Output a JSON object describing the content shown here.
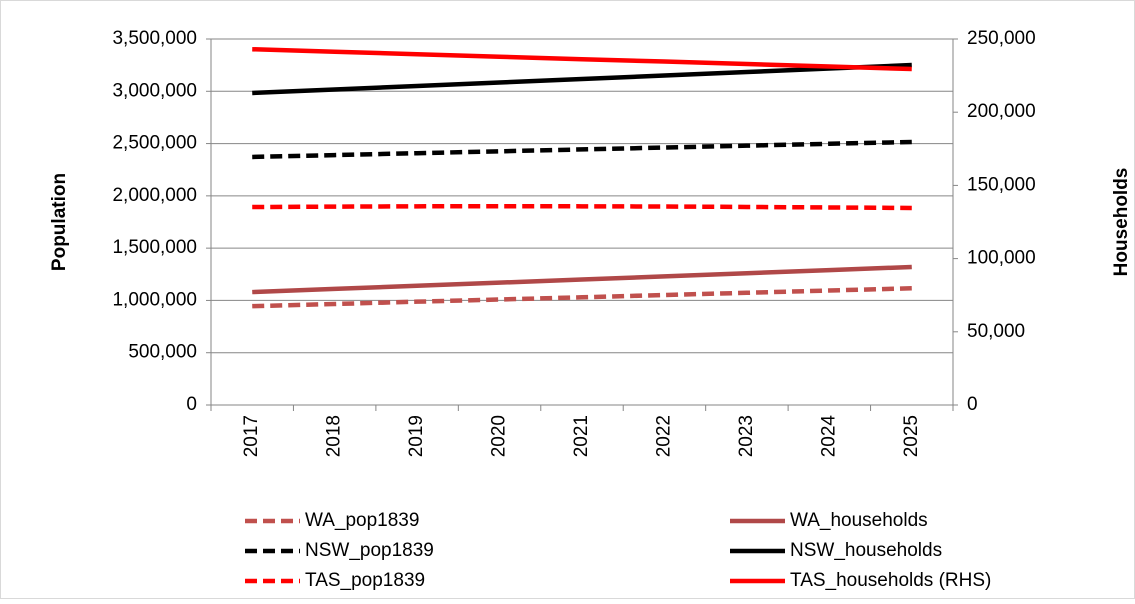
{
  "chart_data": {
    "type": "line",
    "y_label": "Population",
    "y2_label": "Households",
    "categories": [
      "2017",
      "2018",
      "2019",
      "2020",
      "2021",
      "2022",
      "2023",
      "2024",
      "2025"
    ],
    "ylim": [
      0,
      3500000
    ],
    "yticks": [
      {
        "value": 0,
        "label": "0"
      },
      {
        "value": 500000,
        "label": "500,000"
      },
      {
        "value": 1000000,
        "label": "1,000,000"
      },
      {
        "value": 1500000,
        "label": "1,500,000"
      },
      {
        "value": 2000000,
        "label": "2,000,000"
      },
      {
        "value": 2500000,
        "label": "2,500,000"
      },
      {
        "value": 3000000,
        "label": "3,000,000"
      },
      {
        "value": 3500000,
        "label": "3,500,000"
      }
    ],
    "y2lim": [
      0,
      250000
    ],
    "y2ticks": [
      {
        "value": 0,
        "label": "0"
      },
      {
        "value": 50000,
        "label": "50,000"
      },
      {
        "value": 100000,
        "label": "100,000"
      },
      {
        "value": 150000,
        "label": "150,000"
      },
      {
        "value": 200000,
        "label": "200,000"
      },
      {
        "value": 250000,
        "label": "250,000"
      }
    ],
    "grid": true,
    "series": [
      {
        "name": "WA_pop1839",
        "color": "#c0504d",
        "dashed": true,
        "values": [
          945000,
          966000,
          988000,
          1009000,
          1030000,
          1052000,
          1073000,
          1095000,
          1116000
        ]
      },
      {
        "name": "WA_households",
        "color": "#b04848",
        "dashed": false,
        "values": [
          1080000,
          1110000,
          1140000,
          1170000,
          1200000,
          1230000,
          1260000,
          1290000,
          1320000
        ]
      },
      {
        "name": "NSW_pop1839",
        "color": "#000000",
        "dashed": true,
        "values": [
          2372000,
          2390000,
          2408000,
          2426000,
          2444000,
          2462000,
          2480000,
          2498000,
          2515000
        ]
      },
      {
        "name": "NSW_households",
        "color": "#000000",
        "dashed": false,
        "values": [
          2984000,
          3017000,
          3051000,
          3084000,
          3117000,
          3151000,
          3184000,
          3218000,
          3251000
        ]
      },
      {
        "name": "TAS_pop1839",
        "color": "#ff0000",
        "dashed": true,
        "values": [
          1893000,
          1897000,
          1900000,
          1901000,
          1900000,
          1898000,
          1894000,
          1889000,
          1884000
        ]
      },
      {
        "name": "TAS_households (RHS)",
        "color": "#ff0000",
        "dashed": false,
        "axis": "y2",
        "values": [
          243000,
          241300,
          239600,
          237900,
          236200,
          234600,
          232900,
          231200,
          229500
        ]
      }
    ]
  }
}
